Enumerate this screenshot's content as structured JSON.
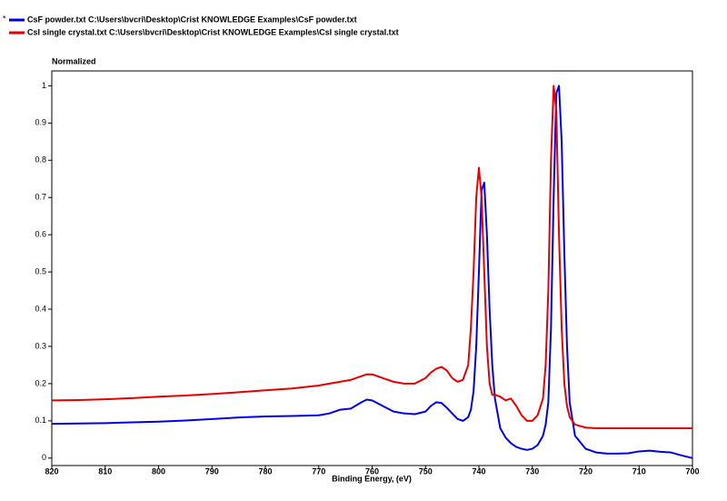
{
  "chart_data": {
    "type": "line",
    "y_label": "Normalized",
    "x_label": "Binding Energy, (eV)",
    "active_marker": "*",
    "x": [
      820,
      815,
      810,
      805,
      800,
      795,
      790,
      785,
      780,
      775,
      770,
      768,
      766,
      764,
      762,
      761,
      760,
      758,
      756,
      754,
      752,
      750,
      749,
      748,
      747,
      746,
      745,
      744,
      743,
      742,
      741.5,
      741,
      740.5,
      740,
      739.5,
      739,
      738.5,
      738,
      737.5,
      737,
      736,
      735,
      734,
      733,
      732,
      731,
      730,
      729,
      728,
      727.5,
      727,
      726.5,
      726,
      725.5,
      725,
      724.5,
      724,
      723.5,
      723,
      722,
      720,
      718,
      716,
      714,
      712,
      710,
      708,
      706,
      704,
      702,
      700
    ],
    "series": [
      {
        "name": "CsF powder.txt C:\\Users\\bvcri\\Desktop\\Crist KNOWLEDGE Examples\\CsF powder.txt",
        "color": "#0000e6",
        "values": [
          0.092,
          0.093,
          0.094,
          0.096,
          0.098,
          0.101,
          0.105,
          0.109,
          0.112,
          0.113,
          0.115,
          0.12,
          0.13,
          0.133,
          0.15,
          0.157,
          0.155,
          0.14,
          0.125,
          0.12,
          0.118,
          0.125,
          0.14,
          0.15,
          0.148,
          0.135,
          0.12,
          0.105,
          0.1,
          0.11,
          0.13,
          0.18,
          0.3,
          0.5,
          0.72,
          0.74,
          0.6,
          0.4,
          0.25,
          0.16,
          0.08,
          0.055,
          0.04,
          0.03,
          0.025,
          0.022,
          0.025,
          0.035,
          0.06,
          0.09,
          0.15,
          0.35,
          0.7,
          0.98,
          1.0,
          0.85,
          0.55,
          0.3,
          0.15,
          0.06,
          0.025,
          0.015,
          0.012,
          0.012,
          0.013,
          0.018,
          0.02,
          0.017,
          0.015,
          0.007,
          0
        ]
      },
      {
        "name": "CsI single crystal.txt C:\\Users\\bvcri\\Desktop\\Crist KNOWLEDGE Examples\\CsI single crystal.txt",
        "color": "#e60000",
        "values": [
          0.155,
          0.156,
          0.158,
          0.161,
          0.165,
          0.168,
          0.172,
          0.177,
          0.182,
          0.187,
          0.195,
          0.2,
          0.205,
          0.21,
          0.22,
          0.225,
          0.225,
          0.215,
          0.205,
          0.2,
          0.2,
          0.215,
          0.23,
          0.24,
          0.245,
          0.235,
          0.215,
          0.205,
          0.21,
          0.25,
          0.35,
          0.5,
          0.7,
          0.78,
          0.7,
          0.5,
          0.3,
          0.2,
          0.17,
          0.17,
          0.165,
          0.155,
          0.16,
          0.14,
          0.115,
          0.1,
          0.1,
          0.115,
          0.16,
          0.25,
          0.45,
          0.8,
          1.0,
          0.93,
          0.6,
          0.35,
          0.2,
          0.14,
          0.11,
          0.09,
          0.082,
          0.08,
          0.08,
          0.08,
          0.08,
          0.08,
          0.08,
          0.08,
          0.08,
          0.08,
          0.08
        ]
      }
    ],
    "xlim": [
      820,
      700
    ],
    "ylim": [
      -0.02,
      1.04
    ],
    "xticks": [
      820,
      810,
      800,
      790,
      780,
      770,
      760,
      750,
      740,
      730,
      720,
      710,
      700
    ],
    "yticks": [
      0,
      0.1,
      0.2,
      0.3,
      0.4,
      0.5,
      0.6,
      0.7,
      0.8,
      0.9,
      1
    ]
  }
}
